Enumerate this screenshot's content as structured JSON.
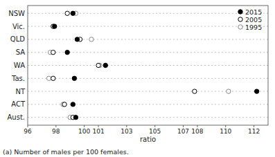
{
  "chart_data": {
    "type": "dot",
    "categories": [
      "NSW",
      "Vic.",
      "QLD",
      "SA",
      "WA",
      "Tas.",
      "NT",
      "ACT",
      "Aust."
    ],
    "series": [
      {
        "name": "2015",
        "color": "#000000",
        "marker": "filled-circle",
        "values": [
          99.2,
          97.9,
          99.5,
          98.8,
          101.5,
          99.3,
          112.2,
          99.2,
          99.4
        ]
      },
      {
        "name": "2005",
        "color": "#000000",
        "marker": "open-circle",
        "values": [
          98.8,
          97.8,
          99.7,
          97.8,
          101.0,
          97.8,
          107.8,
          98.6,
          99.2
        ]
      },
      {
        "name": "1995",
        "color": "#888888",
        "marker": "open-circle",
        "values": [
          99.4,
          null,
          100.5,
          97.6,
          101.1,
          97.5,
          110.2,
          98.5,
          99.0
        ]
      }
    ],
    "xlim": [
      96,
      113
    ],
    "xticks": [
      96,
      98,
      100,
      101,
      103,
      105,
      107,
      108,
      110,
      112
    ],
    "xlabel": "ratio",
    "annotations": [
      "(a) Number of males per 100 females."
    ],
    "grid": true,
    "legend": "upper right"
  }
}
